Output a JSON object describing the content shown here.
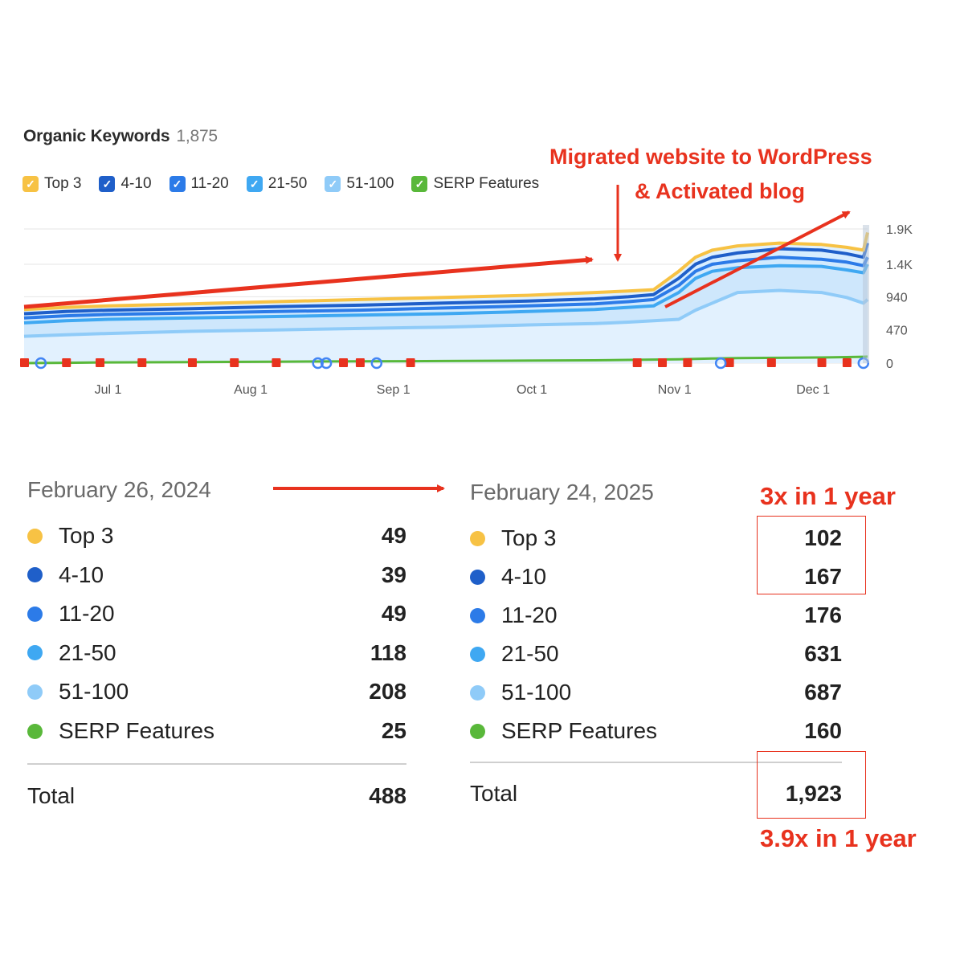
{
  "header": {
    "title": "Organic Keywords",
    "count": "1,875"
  },
  "legend": [
    {
      "label": "Top 3",
      "color": "#f7c244"
    },
    {
      "label": "4-10",
      "color": "#1f5fc9"
    },
    {
      "label": "11-20",
      "color": "#2c7be8"
    },
    {
      "label": "21-50",
      "color": "#3fa8f2"
    },
    {
      "label": "51-100",
      "color": "#8fcbf8"
    },
    {
      "label": "SERP Features",
      "color": "#59b83a"
    }
  ],
  "annotations": {
    "migration_line1": "Migrated website to WordPress",
    "migration_line2": "& Activated blog",
    "growth_top": "3x in 1 year",
    "growth_total": "3.9x in 1 year"
  },
  "chart_data": {
    "type": "area",
    "title": "Organic Keywords",
    "x_ticks": [
      "Jul 1",
      "Aug 1",
      "Sep 1",
      "Oct 1",
      "Nov 1",
      "Dec 1"
    ],
    "y_ticks": [
      "1.9K",
      "1.4K",
      "940",
      "470",
      "0"
    ],
    "ylim": [
      0,
      1900
    ],
    "x": [
      0,
      0.05,
      0.1,
      0.2,
      0.3,
      0.4,
      0.5,
      0.6,
      0.68,
      0.72,
      0.75,
      0.78,
      0.8,
      0.82,
      0.85,
      0.9,
      0.95,
      0.98,
      1.0,
      1.005
    ],
    "series": [
      {
        "name": "51-100",
        "values": [
          380,
          400,
          420,
          450,
          470,
          490,
          510,
          540,
          560,
          580,
          600,
          620,
          750,
          850,
          1000,
          1030,
          1000,
          930,
          850,
          900
        ]
      },
      {
        "name": "21-50",
        "values": [
          570,
          600,
          620,
          640,
          660,
          680,
          700,
          730,
          760,
          790,
          810,
          1000,
          1200,
          1300,
          1350,
          1380,
          1370,
          1320,
          1280,
          1400
        ]
      },
      {
        "name": "11-20",
        "values": [
          640,
          670,
          690,
          710,
          730,
          750,
          780,
          810,
          840,
          870,
          900,
          1100,
          1300,
          1400,
          1450,
          1500,
          1470,
          1430,
          1380,
          1500
        ]
      },
      {
        "name": "4-10",
        "values": [
          700,
          730,
          750,
          770,
          800,
          820,
          850,
          880,
          910,
          940,
          970,
          1200,
          1400,
          1500,
          1560,
          1620,
          1600,
          1550,
          1500,
          1700
        ]
      },
      {
        "name": "Top 3",
        "values": [
          760,
          790,
          810,
          840,
          870,
          900,
          930,
          960,
          1000,
          1020,
          1040,
          1300,
          1500,
          1600,
          1660,
          1700,
          1680,
          1640,
          1600,
          1850
        ]
      },
      {
        "name": "SERP Features",
        "values": [
          0,
          5,
          10,
          15,
          20,
          25,
          30,
          35,
          40,
          45,
          50,
          55,
          60,
          65,
          70,
          75,
          80,
          85,
          90,
          92
        ]
      }
    ]
  },
  "table_left": {
    "date": "February 26, 2024",
    "rows": [
      {
        "label": "Top 3",
        "value": "49",
        "color": "#f7c244"
      },
      {
        "label": "4-10",
        "value": "39",
        "color": "#1f5fc9"
      },
      {
        "label": "11-20",
        "value": "49",
        "color": "#2c7be8"
      },
      {
        "label": "21-50",
        "value": "118",
        "color": "#3fa8f2"
      },
      {
        "label": "51-100",
        "value": "208",
        "color": "#8fcbf8"
      },
      {
        "label": "SERP Features",
        "value": "25",
        "color": "#59b83a"
      }
    ],
    "total_label": "Total",
    "total_value": "488"
  },
  "table_right": {
    "date": "February 24, 2025",
    "rows": [
      {
        "label": "Top 3",
        "value": "102",
        "color": "#f7c244"
      },
      {
        "label": "4-10",
        "value": "167",
        "color": "#1f5fc9"
      },
      {
        "label": "11-20",
        "value": "176",
        "color": "#2c7be8"
      },
      {
        "label": "21-50",
        "value": "631",
        "color": "#3fa8f2"
      },
      {
        "label": "51-100",
        "value": "687",
        "color": "#8fcbf8"
      },
      {
        "label": "SERP Features",
        "value": "160",
        "color": "#59b83a"
      }
    ],
    "total_label": "Total",
    "total_value": "1,923"
  }
}
